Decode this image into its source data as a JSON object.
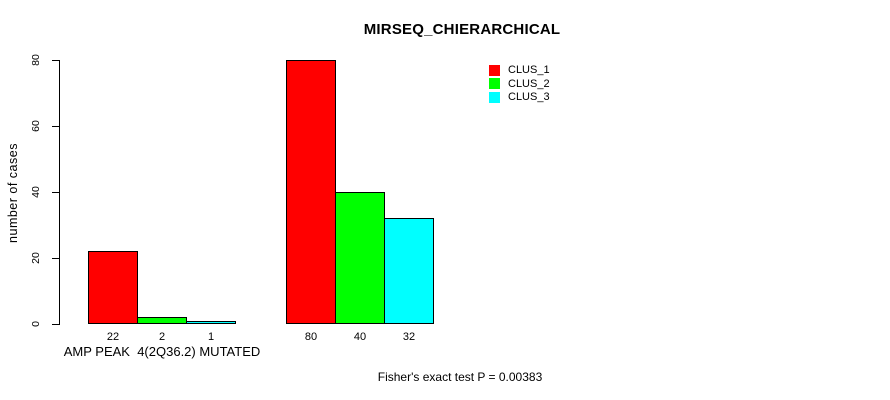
{
  "chart_data": {
    "type": "bar",
    "title": "MIRSEQ_CHIERARCHICAL",
    "ylabel": "number of cases",
    "ylim": [
      0,
      80
    ],
    "yticks": [
      0,
      20,
      40,
      60,
      80
    ],
    "grid": false,
    "legend_position": "top-right",
    "background_color": "#ffffff",
    "bar_border_color": "#000000",
    "categories": [
      "AMP PEAK  4(2Q36.2) MUTATED",
      ""
    ],
    "series": [
      {
        "name": "CLUS_1",
        "color": "#ff0000",
        "values": [
          22,
          80
        ]
      },
      {
        "name": "CLUS_2",
        "color": "#00ff00",
        "values": [
          2,
          40
        ]
      },
      {
        "name": "CLUS_3",
        "color": "#00ffff",
        "values": [
          1,
          32
        ]
      }
    ],
    "bar_value_labels": [
      [
        "22",
        "2",
        "1"
      ],
      [
        "80",
        "40",
        "32"
      ]
    ],
    "caption": "Fisher's exact test P = 0.00383"
  }
}
